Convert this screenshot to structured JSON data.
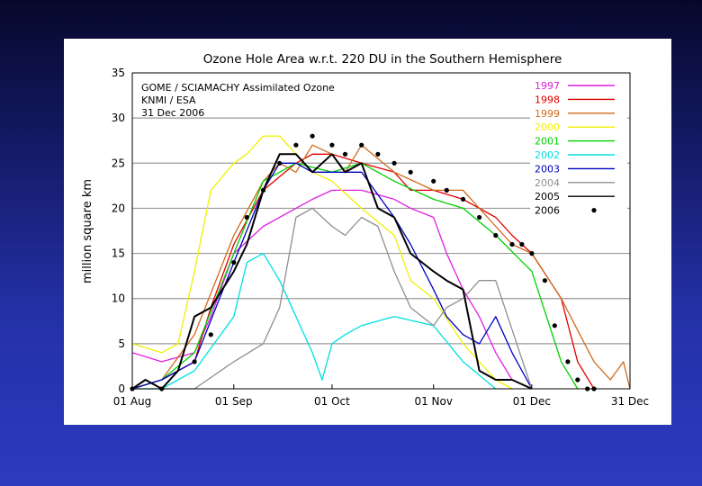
{
  "chart_data": {
    "type": "line",
    "title": "Ozone Hole Area w.r.t. 220 DU in the Southern Hemisphere",
    "ylabel": "million square km",
    "xlabel": "",
    "annotations": [
      "GOME / SCIAMACHY Assimilated Ozone",
      "KNMI / ESA",
      "31 Dec 2006"
    ],
    "ylim": [
      0,
      35
    ],
    "yticks": [
      0,
      5,
      10,
      15,
      20,
      25,
      30,
      35
    ],
    "xlim": [
      "2006-08-01",
      "2006-12-31"
    ],
    "xticks": [
      "01 Aug",
      "01 Sep",
      "01 Oct",
      "01 Nov",
      "01 Dec",
      "31 Dec"
    ],
    "grid": true,
    "legend_position": "top-right",
    "series": [
      {
        "name": "1997",
        "color": "#e020e0",
        "style": "line",
        "x": [
          "08-01",
          "08-10",
          "08-20",
          "08-25",
          "09-01",
          "09-10",
          "09-20",
          "09-25",
          "10-01",
          "10-10",
          "10-20",
          "10-25",
          "11-01",
          "11-05",
          "11-10",
          "11-15",
          "11-20",
          "11-25",
          "12-01"
        ],
        "y": [
          4,
          3,
          4,
          8,
          15,
          18,
          20,
          21,
          22,
          22,
          21,
          20,
          19,
          15,
          11,
          8,
          4,
          1,
          0
        ]
      },
      {
        "name": "1998",
        "color": "#e00000",
        "style": "line",
        "x": [
          "08-01",
          "08-10",
          "08-20",
          "08-25",
          "09-01",
          "09-10",
          "09-20",
          "09-25",
          "10-01",
          "10-10",
          "10-20",
          "10-25",
          "11-01",
          "11-10",
          "11-20",
          "11-25",
          "12-01",
          "12-10",
          "12-15",
          "12-20"
        ],
        "y": [
          0,
          1,
          3,
          9,
          16,
          22,
          25,
          26,
          26,
          25,
          24,
          22,
          22,
          21,
          19,
          17,
          15,
          10,
          3,
          0
        ]
      },
      {
        "name": "1999",
        "color": "#d06a1a",
        "style": "line",
        "x": [
          "08-01",
          "08-10",
          "08-20",
          "09-01",
          "09-10",
          "09-15",
          "09-20",
          "09-25",
          "10-01",
          "10-05",
          "10-10",
          "10-20",
          "11-01",
          "11-10",
          "11-20",
          "11-25",
          "12-01",
          "12-10",
          "12-20",
          "12-25",
          "12-29",
          "12-31"
        ],
        "y": [
          0,
          1,
          6,
          17,
          23,
          25,
          24,
          27,
          26,
          24,
          27,
          24,
          22,
          22,
          18,
          16,
          15,
          10,
          3,
          1,
          3,
          0
        ]
      },
      {
        "name": "2000",
        "color": "#f0f000",
        "style": "line",
        "x": [
          "08-01",
          "08-10",
          "08-15",
          "08-20",
          "08-25",
          "09-01",
          "09-05",
          "09-10",
          "09-15",
          "09-20",
          "09-25",
          "10-01",
          "10-10",
          "10-20",
          "10-25",
          "11-01",
          "11-10",
          "11-20",
          "11-25"
        ],
        "y": [
          5,
          4,
          5,
          13,
          22,
          25,
          26,
          28,
          28,
          26,
          24,
          23,
          20,
          17,
          12,
          10,
          5,
          1,
          0
        ]
      },
      {
        "name": "2001",
        "color": "#00d000",
        "style": "line",
        "x": [
          "08-01",
          "08-10",
          "08-20",
          "09-01",
          "09-10",
          "09-20",
          "10-01",
          "10-10",
          "10-20",
          "11-01",
          "11-10",
          "11-20",
          "12-01",
          "12-10",
          "12-15"
        ],
        "y": [
          0,
          1,
          4,
          15,
          23,
          25,
          24,
          25,
          23,
          21,
          20,
          17,
          13,
          3,
          0
        ]
      },
      {
        "name": "2002",
        "color": "#00e0e0",
        "style": "line",
        "x": [
          "08-01",
          "08-10",
          "08-20",
          "09-01",
          "09-05",
          "09-10",
          "09-15",
          "09-20",
          "09-25",
          "09-28",
          "10-01",
          "10-05",
          "10-10",
          "10-20",
          "11-01",
          "11-10",
          "11-20"
        ],
        "y": [
          0,
          0,
          2,
          8,
          14,
          15,
          12,
          8,
          4,
          1,
          5,
          6,
          7,
          8,
          7,
          3,
          0
        ]
      },
      {
        "name": "2003",
        "color": "#0000c0",
        "style": "line",
        "x": [
          "08-01",
          "08-10",
          "08-20",
          "09-01",
          "09-10",
          "09-15",
          "09-20",
          "09-25",
          "10-01",
          "10-10",
          "10-20",
          "10-25",
          "11-01",
          "11-05",
          "11-10",
          "11-15",
          "11-20",
          "11-25",
          "12-01"
        ],
        "y": [
          0,
          1,
          3,
          14,
          22,
          25,
          25,
          24,
          24,
          24,
          19,
          16,
          11,
          8,
          6,
          5,
          8,
          4,
          0
        ]
      },
      {
        "name": "2004",
        "color": "#909090",
        "style": "line",
        "x": [
          "08-01",
          "08-20",
          "09-01",
          "09-10",
          "09-15",
          "09-20",
          "09-25",
          "10-01",
          "10-05",
          "10-10",
          "10-15",
          "10-20",
          "10-25",
          "11-01",
          "11-05",
          "11-10",
          "11-15",
          "11-20",
          "12-01"
        ],
        "y": [
          0,
          0,
          3,
          5,
          9,
          19,
          20,
          18,
          17,
          19,
          18,
          13,
          9,
          7,
          9,
          10,
          12,
          12,
          0
        ]
      },
      {
        "name": "2005",
        "color": "#000000",
        "style": "line",
        "x": [
          "08-01",
          "08-05",
          "08-10",
          "08-15",
          "08-20",
          "08-25",
          "09-01",
          "09-05",
          "09-10",
          "09-15",
          "09-20",
          "09-25",
          "10-01",
          "10-05",
          "10-10",
          "10-15",
          "10-20",
          "10-25",
          "11-01",
          "11-05",
          "11-10",
          "11-15",
          "11-20",
          "11-25",
          "12-01"
        ],
        "y": [
          0,
          1,
          0,
          2,
          8,
          9,
          13,
          16,
          22,
          26,
          26,
          24,
          26,
          24,
          25,
          20,
          19,
          15,
          13,
          12,
          11,
          2,
          1,
          1,
          0
        ]
      },
      {
        "name": "2006",
        "color": "#000000",
        "style": "dots",
        "x": [
          "08-01",
          "08-10",
          "08-20",
          "08-25",
          "09-01",
          "09-05",
          "09-10",
          "09-15",
          "09-20",
          "09-25",
          "10-01",
          "10-05",
          "10-10",
          "10-15",
          "10-20",
          "10-25",
          "11-01",
          "11-05",
          "11-10",
          "11-15",
          "11-20",
          "11-25",
          "11-28",
          "12-01",
          "12-05",
          "12-08",
          "12-12",
          "12-15",
          "12-18",
          "12-20"
        ],
        "y": [
          0,
          0,
          3,
          6,
          14,
          19,
          22,
          25,
          27,
          28,
          27,
          26,
          27,
          26,
          25,
          24,
          23,
          22,
          21,
          19,
          17,
          16,
          16,
          15,
          12,
          7,
          3,
          1,
          0,
          0
        ]
      }
    ]
  }
}
